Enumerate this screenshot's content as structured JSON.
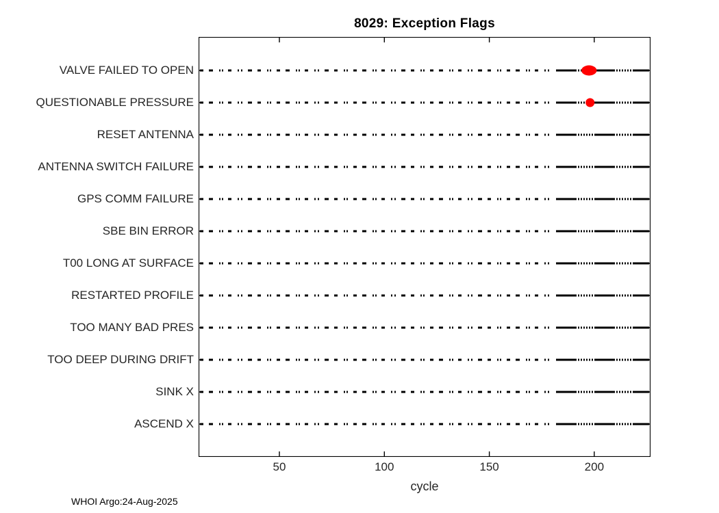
{
  "title": "8029: Exception Flags",
  "footer": "WHOI Argo:24-Aug-2025",
  "chart_data": {
    "type": "scatter",
    "title": "8029: Exception Flags",
    "xlabel": "cycle",
    "ylabel": "",
    "xlim": [
      11.5,
      226.8
    ],
    "xticks": [
      50,
      100,
      150,
      200
    ],
    "grid": false,
    "legend": "none",
    "categories": [
      "VALVE FAILED TO OPEN",
      "QUESTIONABLE PRESSURE",
      "RESET ANTENNA",
      "ANTENNA SWITCH FAILURE",
      "GPS COMM FAILURE",
      "SBE BIN ERROR",
      "T00 LONG AT SURFACE",
      "RESTARTED PROFILE",
      "TOO MANY BAD PRES",
      "TOO DEEP DURING DRIFT",
      "SINK X",
      "ASCEND X"
    ],
    "series": [
      {
        "name": "flag timeline",
        "marker": "black dash per cycle",
        "description": "dashed black timeline spanning all cycles on every flag row, denser toward high cycle numbers"
      },
      {
        "name": "exception events",
        "marker": "red filled dot",
        "points": [
          {
            "category": "VALVE FAILED TO OPEN",
            "cycle_start": 195,
            "cycle_end": 200
          },
          {
            "category": "QUESTIONABLE PRESSURE",
            "cycle_start": 198,
            "cycle_end": 198
          }
        ]
      }
    ],
    "colors": {
      "line": "#000000",
      "event": "#ff0000",
      "text": "#262626",
      "axis": "#000000"
    }
  }
}
